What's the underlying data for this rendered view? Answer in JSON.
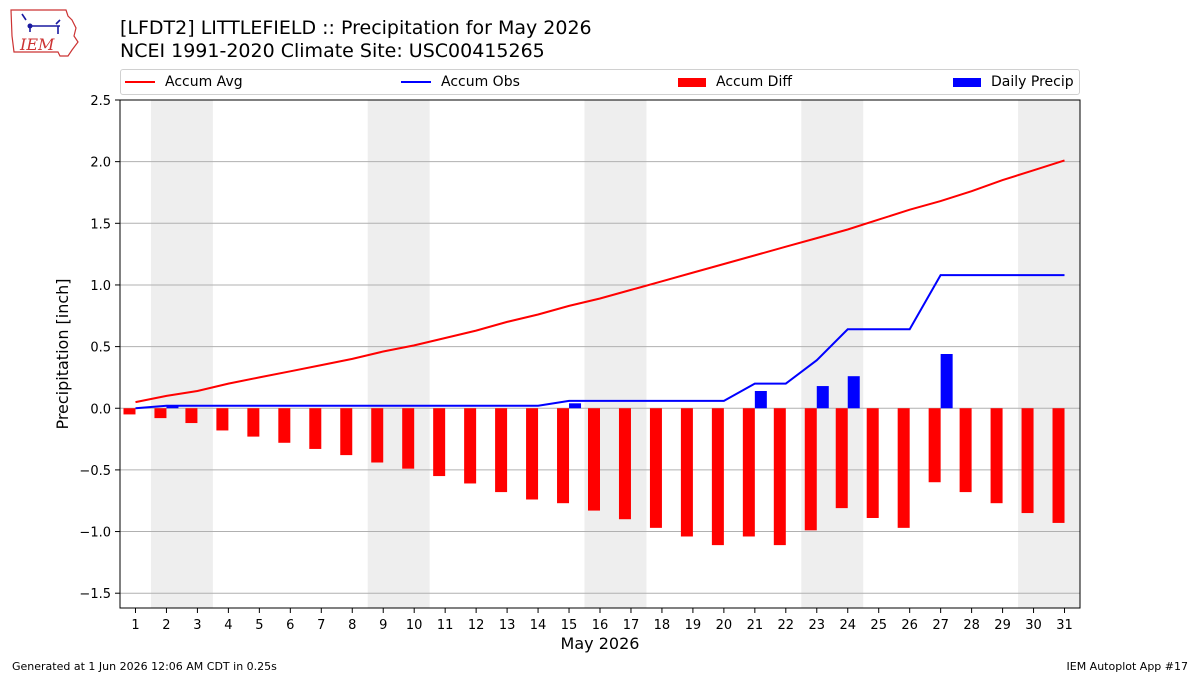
{
  "logo": {
    "text": "IEM"
  },
  "header": {
    "title": "[LFDT2] LITTLEFIELD :: Precipitation for May 2026",
    "subtitle": "NCEI 1991-2020 Climate Site: USC00415265"
  },
  "footer": {
    "left": "Generated at 1 Jun 2026 12:06 AM CDT in 0.25s",
    "right": "IEM Autoplot App #17"
  },
  "colors": {
    "avg": "#ff0000",
    "obs": "#0000ff",
    "diff": "#ff0000",
    "daily": "#0000ff",
    "weekend": "#eeeeee",
    "grid": "#b0b0b0"
  },
  "chart_data": {
    "type": "bar",
    "xlabel": "May 2026",
    "ylabel": "Precipitation [inch]",
    "xlim": [
      0.5,
      31.5
    ],
    "ylim": [
      -1.62,
      2.5
    ],
    "yticks": [
      -1.5,
      -1.0,
      -0.5,
      0.0,
      0.5,
      1.0,
      1.5,
      2.0,
      2.5
    ],
    "ytick_labels": [
      "−1.5",
      "−1.0",
      "−0.5",
      "0.0",
      "0.5",
      "1.0",
      "1.5",
      "2.0",
      "2.5"
    ],
    "x": [
      1,
      2,
      3,
      4,
      5,
      6,
      7,
      8,
      9,
      10,
      11,
      12,
      13,
      14,
      15,
      16,
      17,
      18,
      19,
      20,
      21,
      22,
      23,
      24,
      25,
      26,
      27,
      28,
      29,
      30,
      31
    ],
    "x_tick_labels": [
      "1",
      "2",
      "3",
      "4",
      "5",
      "6",
      "7",
      "8",
      "9",
      "10",
      "11",
      "12",
      "13",
      "14",
      "15",
      "16",
      "17",
      "18",
      "19",
      "20",
      "21",
      "22",
      "23",
      "24",
      "25",
      "26",
      "27",
      "28",
      "29",
      "30",
      "31"
    ],
    "weekend_bands": [
      [
        2,
        3
      ],
      [
        9,
        10
      ],
      [
        16,
        17
      ],
      [
        23,
        24
      ],
      [
        30,
        31
      ]
    ],
    "grid": "y",
    "legend_position": "top",
    "series": [
      {
        "name": "Accum Avg",
        "kind": "line",
        "values": [
          0.05,
          0.1,
          0.14,
          0.2,
          0.25,
          0.3,
          0.35,
          0.4,
          0.46,
          0.51,
          0.57,
          0.63,
          0.7,
          0.76,
          0.83,
          0.89,
          0.96,
          1.03,
          1.1,
          1.17,
          1.24,
          1.31,
          1.38,
          1.45,
          1.53,
          1.61,
          1.68,
          1.76,
          1.85,
          1.93,
          2.01
        ]
      },
      {
        "name": "Accum Obs",
        "kind": "line",
        "values": [
          0.0,
          0.02,
          0.02,
          0.02,
          0.02,
          0.02,
          0.02,
          0.02,
          0.02,
          0.02,
          0.02,
          0.02,
          0.02,
          0.02,
          0.06,
          0.06,
          0.06,
          0.06,
          0.06,
          0.06,
          0.2,
          0.2,
          0.39,
          0.64,
          0.64,
          0.64,
          1.08,
          1.08,
          1.08,
          1.08,
          1.08
        ]
      },
      {
        "name": "Accum Diff",
        "kind": "bar",
        "values": [
          -0.05,
          -0.08,
          -0.12,
          -0.18,
          -0.23,
          -0.28,
          -0.33,
          -0.38,
          -0.44,
          -0.49,
          -0.55,
          -0.61,
          -0.68,
          -0.74,
          -0.77,
          -0.83,
          -0.9,
          -0.97,
          -1.04,
          -1.11,
          -1.04,
          -1.11,
          -0.99,
          -0.81,
          -0.89,
          -0.97,
          -0.6,
          -0.68,
          -0.77,
          -0.85,
          -0.93
        ]
      },
      {
        "name": "Daily Precip",
        "kind": "bar",
        "values": [
          0,
          0.02,
          0,
          0,
          0,
          0,
          0,
          0,
          0,
          0,
          0,
          0,
          0,
          0,
          0.04,
          0,
          0,
          0,
          0,
          0,
          0.14,
          0,
          0.18,
          0.26,
          0,
          0,
          0.44,
          0,
          0,
          0,
          0
        ]
      }
    ]
  }
}
